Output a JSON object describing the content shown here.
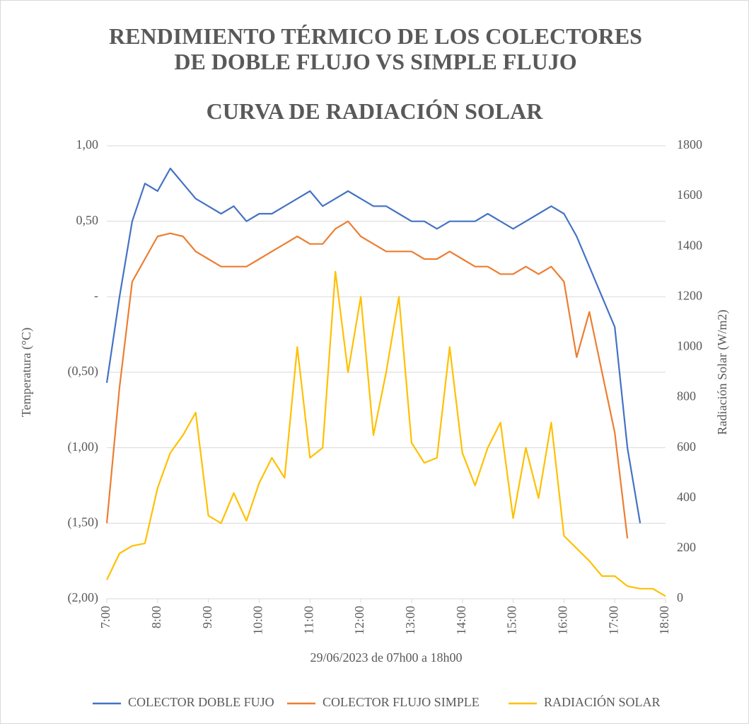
{
  "chart_data": {
    "type": "line",
    "title": "RENDIMIENTO TÉRMICO DE LOS COLECTORES DE DOBLE FLUJO VS SIMPLE FLUJO",
    "subtitle": "CURVA DE RADIACIÓN SOLAR",
    "xlabel": "29/06/2023 de 07h00 a 18h00",
    "ylabel": "Temperatura (°C)",
    "y2label": "Radiación Solar (W/m2)",
    "x": [
      7,
      7.25,
      7.5,
      7.75,
      8,
      8.25,
      8.5,
      8.75,
      9,
      9.25,
      9.5,
      9.75,
      10,
      10.25,
      10.5,
      10.75,
      11,
      11.25,
      11.5,
      11.75,
      12,
      12.25,
      12.5,
      12.75,
      13,
      13.25,
      13.5,
      13.75,
      14,
      14.25,
      14.5,
      14.75,
      15,
      15.25,
      15.5,
      15.75,
      16,
      16.25,
      16.5,
      16.75,
      17,
      17.25,
      17.5,
      17.75,
      18
    ],
    "xlim": [
      7,
      18
    ],
    "xticks": [
      {
        "value": 7,
        "label": "7:00"
      },
      {
        "value": 8,
        "label": "8:00"
      },
      {
        "value": 9,
        "label": "9:00"
      },
      {
        "value": 10,
        "label": "10:00"
      },
      {
        "value": 11,
        "label": "11:00"
      },
      {
        "value": 12,
        "label": "12:00"
      },
      {
        "value": 13,
        "label": "13:00"
      },
      {
        "value": 14,
        "label": "14:00"
      },
      {
        "value": 15,
        "label": "15:00"
      },
      {
        "value": 16,
        "label": "16:00"
      },
      {
        "value": 17,
        "label": "17:00"
      },
      {
        "value": 18,
        "label": "18:00"
      }
    ],
    "ylim": [
      -2,
      1
    ],
    "yticks": [
      {
        "value": 1,
        "label": "1,00"
      },
      {
        "value": 0.5,
        "label": "0,50"
      },
      {
        "value": 0,
        "label": "-"
      },
      {
        "value": -0.5,
        "label": "(0,50)"
      },
      {
        "value": -1,
        "label": "(1,00)"
      },
      {
        "value": -1.5,
        "label": "(1,50)"
      },
      {
        "value": -2,
        "label": "(2,00)"
      }
    ],
    "y2lim": [
      0,
      1800
    ],
    "y2ticks": [
      0,
      200,
      400,
      600,
      800,
      1000,
      1200,
      1400,
      1600,
      1800
    ],
    "grid": true,
    "legend": "bottom",
    "series": [
      {
        "name": "COLECTOR DOBLE FUJO",
        "color": "#4472c4",
        "values": [
          -0.57,
          0.0,
          0.5,
          0.75,
          0.7,
          0.85,
          0.75,
          0.65,
          0.6,
          0.55,
          0.6,
          0.5,
          0.55,
          0.55,
          0.6,
          0.65,
          0.7,
          0.6,
          0.65,
          0.7,
          0.65,
          0.6,
          0.6,
          0.55,
          0.5,
          0.5,
          0.45,
          0.5,
          0.5,
          0.5,
          0.55,
          0.5,
          0.45,
          0.5,
          0.55,
          0.6,
          0.55,
          0.4,
          0.2,
          0.0,
          -0.2,
          -1.0,
          -1.5,
          null,
          null
        ]
      },
      {
        "name": "COLECTOR FLUJO SIMPLE",
        "color": "#ed7d31",
        "values": [
          -1.5,
          -0.6,
          0.1,
          0.25,
          0.4,
          0.42,
          0.4,
          0.3,
          0.25,
          0.2,
          0.2,
          0.2,
          0.25,
          0.3,
          0.35,
          0.4,
          0.35,
          0.35,
          0.45,
          0.5,
          0.4,
          0.35,
          0.3,
          0.3,
          0.3,
          0.25,
          0.25,
          0.3,
          0.25,
          0.2,
          0.2,
          0.15,
          0.15,
          0.2,
          0.15,
          0.2,
          0.1,
          -0.4,
          -0.1,
          -0.5,
          -0.9,
          -1.6,
          null,
          null,
          null
        ]
      },
      {
        "name": "RADIACIÓN SOLAR",
        "color": "#ffc000",
        "axis": "y2",
        "values": [
          75,
          180,
          210,
          220,
          440,
          580,
          650,
          740,
          330,
          300,
          420,
          310,
          460,
          560,
          480,
          1000,
          560,
          600,
          1300,
          900,
          1200,
          650,
          900,
          1200,
          620,
          540,
          560,
          1000,
          580,
          450,
          600,
          700,
          320,
          600,
          400,
          700,
          250,
          200,
          150,
          90,
          90,
          50,
          40,
          40,
          10
        ]
      }
    ]
  }
}
